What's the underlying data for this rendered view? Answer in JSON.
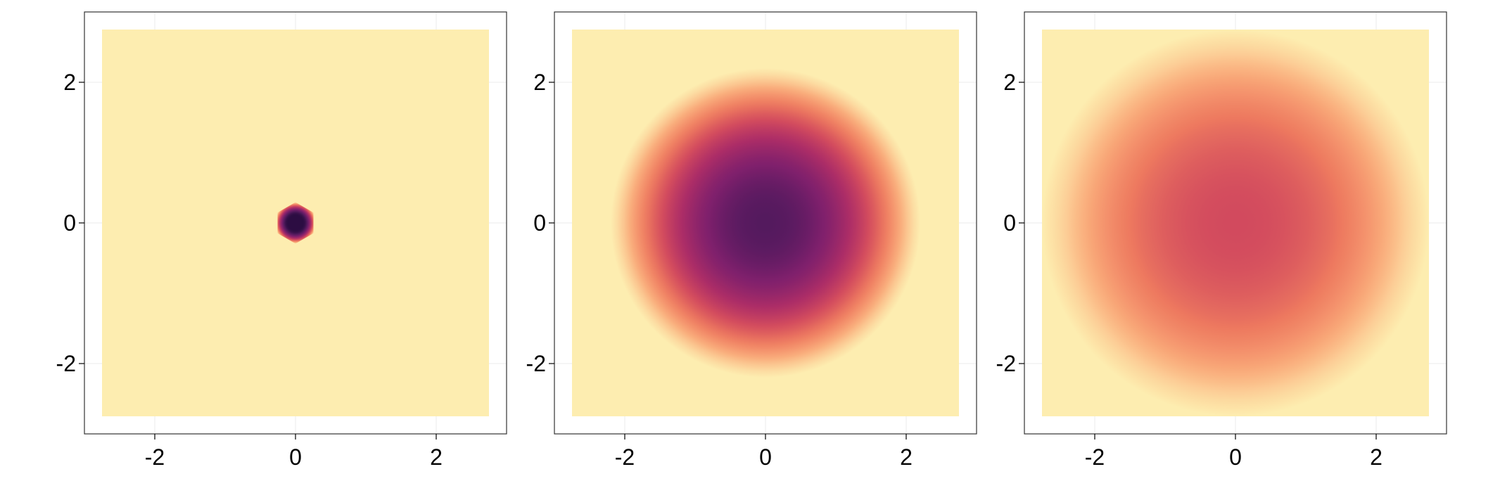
{
  "chart_data": [
    {
      "type": "heatmap",
      "title": "",
      "xlabel": "",
      "ylabel": "",
      "xlim": [
        -3,
        3
      ],
      "ylim": [
        -3,
        3
      ],
      "data_extent": [
        -2.75,
        2.75
      ],
      "grid": true,
      "xticks": [
        -2,
        0,
        2
      ],
      "yticks": [
        -2,
        0,
        2
      ],
      "xtick_labels": [
        "-2",
        "0",
        "2"
      ],
      "ytick_labels": [
        "-2",
        "0",
        "2"
      ],
      "colormap": "magma",
      "distribution": {
        "shape": "radial",
        "center": [
          0,
          0
        ],
        "peak": 1.0,
        "core_radius": 0.1,
        "falloff_radius": 0.3,
        "hexagonal": true
      },
      "background_color": "#fdedb0",
      "peak_color": "#3b0f4f"
    },
    {
      "type": "heatmap",
      "title": "",
      "xlabel": "",
      "ylabel": "",
      "xlim": [
        -3,
        3
      ],
      "ylim": [
        -3,
        3
      ],
      "data_extent": [
        -2.75,
        2.75
      ],
      "grid": true,
      "xticks": [
        -2,
        0,
        2
      ],
      "yticks": [
        -2,
        0,
        2
      ],
      "xtick_labels": [
        "-2",
        "0",
        "2"
      ],
      "ytick_labels": [
        "-2",
        "0",
        "2"
      ],
      "colormap": "magma",
      "distribution": {
        "shape": "radial",
        "center": [
          0,
          0
        ],
        "peak": 0.92,
        "core_radius": 0.0,
        "falloff_radius": 2.2,
        "hexagonal": false
      },
      "background_color": "#fdedb0",
      "peak_color": "#551a5e"
    },
    {
      "type": "heatmap",
      "title": "",
      "xlabel": "",
      "ylabel": "",
      "xlim": [
        -3,
        3
      ],
      "ylim": [
        -3,
        3
      ],
      "data_extent": [
        -2.75,
        2.75
      ],
      "grid": true,
      "xticks": [
        -2,
        0,
        2
      ],
      "yticks": [
        -2,
        0,
        2
      ],
      "xtick_labels": [
        "-2",
        "0",
        "2"
      ],
      "ytick_labels": [
        "-2",
        "0",
        "2"
      ],
      "colormap": "magma",
      "distribution": {
        "shape": "radial",
        "center": [
          0,
          0
        ],
        "peak": 0.55,
        "core_radius": 0.0,
        "falloff_radius": 2.75,
        "hexagonal": false
      },
      "background_color": "#fdedb0",
      "peak_color": "#a82a60"
    }
  ]
}
